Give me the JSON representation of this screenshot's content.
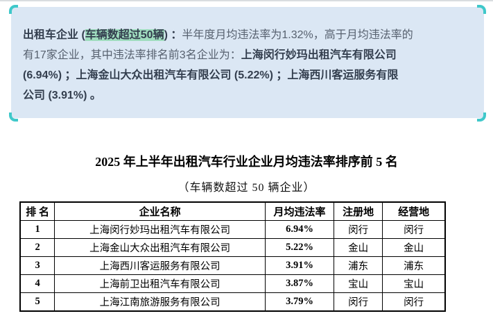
{
  "callout": {
    "lines": [
      {
        "segments": [
          {
            "text": "出租车企业 (",
            "style": "bold"
          },
          {
            "text": "车辆数超过50辆",
            "style": "bold_highlight"
          },
          {
            "text": ") ：",
            "style": "bold"
          },
          {
            "text": "半年度月均违法率为1.32%，高于月均违法率的",
            "style": "regular"
          }
        ]
      },
      {
        "segments": [
          {
            "text": "有17家企业，其中违法率排名前3名企业为：",
            "style": "regular"
          },
          {
            "text": "上海闵行妙玛出租汽车有限公司",
            "style": "bold"
          }
        ]
      },
      {
        "segments": [
          {
            "text": " (6.94%) ；上海金山大众出租汽车有限公司 (5.22%) ；上海西川客运服务有限",
            "style": "bold"
          }
        ]
      },
      {
        "segments": [
          {
            "text": "公司 (3.91%) 。",
            "style": "bold"
          }
        ]
      }
    ]
  },
  "ranking": {
    "title": "2025 年上半年出租汽车行业企业月均违法率排序前 5 名",
    "subtitle": "（车辆数超过 50 辆企业）",
    "headers": [
      "排 名",
      "企业名称",
      "月均违法率",
      "注册地",
      "经营地"
    ],
    "column_widths_pct": [
      8.1,
      49.6,
      16.1,
      11.5,
      14.7
    ],
    "rows": [
      [
        "1",
        "上海闵行妙玛出租汽车有限公司",
        "6.94%",
        "闵行",
        "闵行"
      ],
      [
        "2",
        "上海金山大众出租汽车有限公司",
        "5.22%",
        "金山",
        "金山"
      ],
      [
        "3",
        "上海西川客运服务有限公司",
        "3.91%",
        "浦东",
        "浦东"
      ],
      [
        "4",
        "上海前卫出租汽车有限公司",
        "3.87%",
        "宝山",
        "宝山"
      ],
      [
        "5",
        "上海江南旅游服务有限公司",
        "3.79%",
        "闵行",
        "闵行"
      ]
    ]
  },
  "colors": {
    "callout_bg": "#dbe7f4",
    "bracket_teal": "#3fc8ca",
    "highlight_mint": "#9fdcbe",
    "bold_text": "#333e4e",
    "regular_text": "#57616f",
    "table_border": "#000000"
  }
}
